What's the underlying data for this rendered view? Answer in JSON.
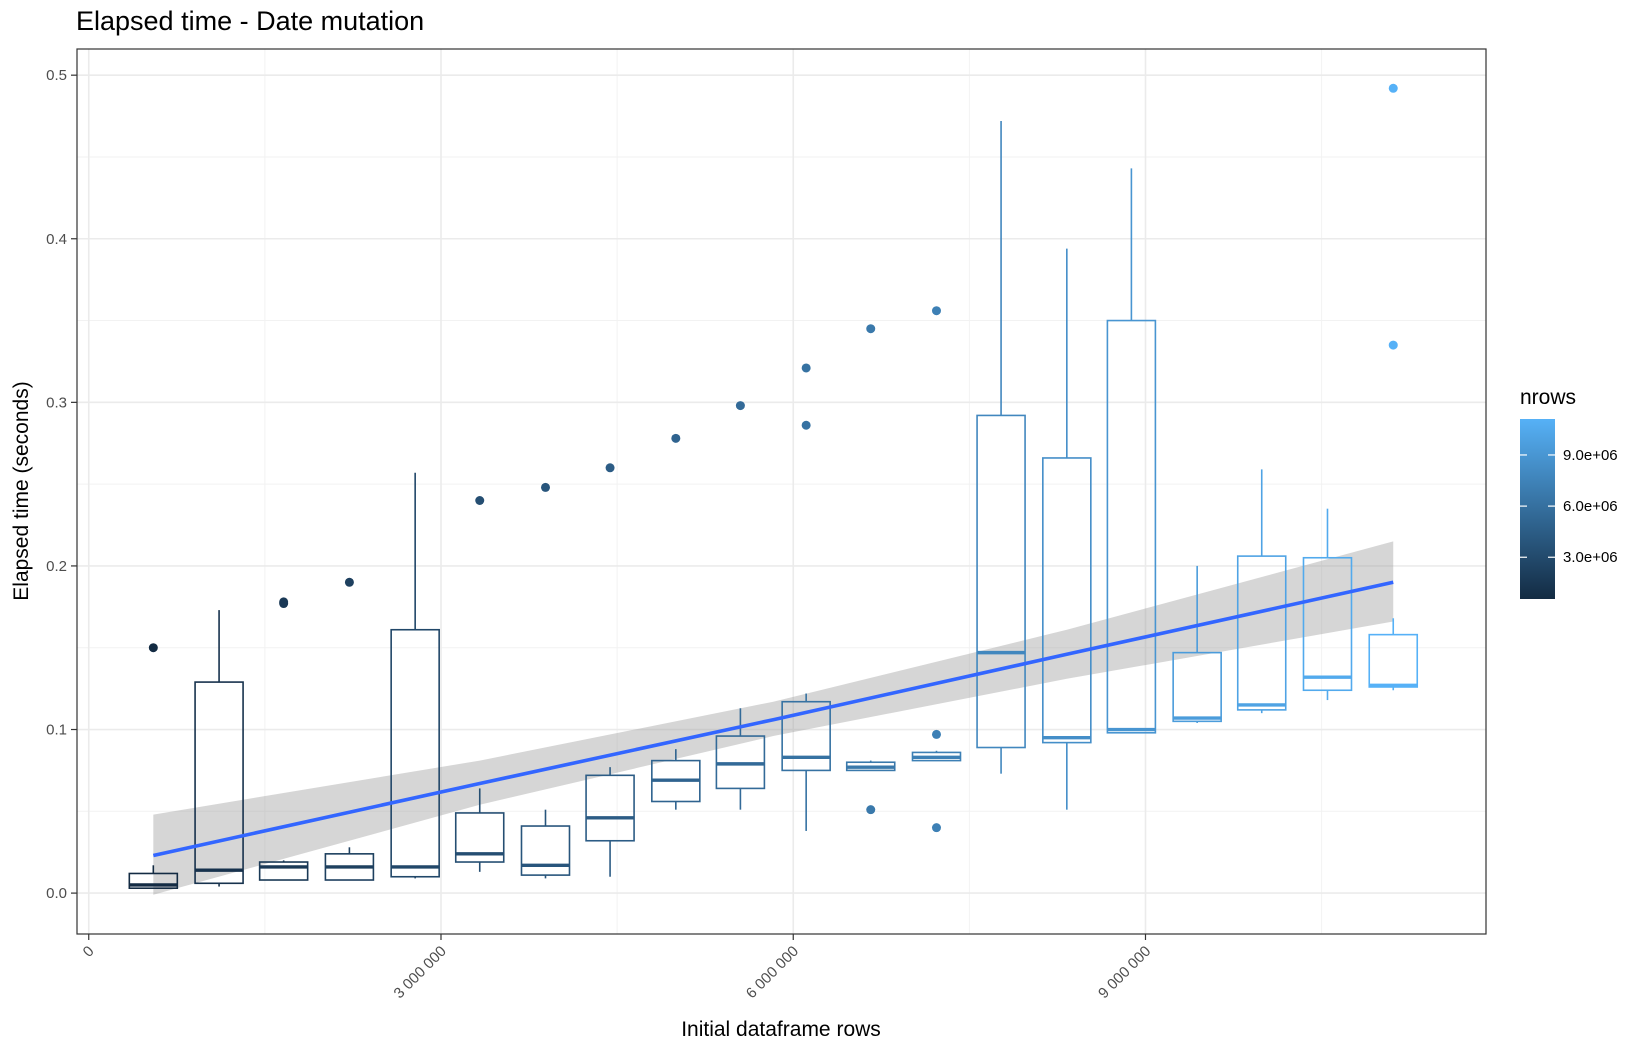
{
  "chart_data": {
    "type": "box",
    "title": "Elapsed time - Date mutation",
    "xlabel": "Initial dataframe rows",
    "ylabel": "Elapsed time (seconds)",
    "xlim": [
      -100000,
      11900000
    ],
    "ylim": [
      -0.025,
      0.516
    ],
    "x_ticks": [
      0,
      3000000,
      6000000,
      9000000
    ],
    "x_tick_labels": [
      "0",
      "3 000 000",
      "6 000 000",
      "9 000 000"
    ],
    "y_ticks": [
      0.0,
      0.1,
      0.2,
      0.3,
      0.4,
      0.5
    ],
    "y_tick_labels": [
      "0.0",
      "0.1",
      "0.2",
      "0.3",
      "0.4",
      "0.5"
    ],
    "grid": true,
    "color_scale": {
      "title": "nrows",
      "low_color": "#132B43",
      "high_color": "#56B1F7",
      "range": [
        550000,
        11110000
      ],
      "ticks": [
        3000000,
        6000000,
        9000000
      ],
      "tick_labels": [
        "3.0e+06",
        "6.0e+06",
        "9.0e+06"
      ],
      "legend_placement": "right"
    },
    "boxes": [
      {
        "x": 550000,
        "min": 0.003,
        "q1": 0.003,
        "median": 0.005,
        "q3": 0.012,
        "max": 0.017,
        "outliers": [
          0.15
        ]
      },
      {
        "x": 1110000,
        "min": 0.004,
        "q1": 0.006,
        "median": 0.014,
        "q3": 0.129,
        "max": 0.173,
        "outliers": []
      },
      {
        "x": 1660000,
        "min": 0.008,
        "q1": 0.008,
        "median": 0.016,
        "q3": 0.019,
        "max": 0.02,
        "outliers": [
          0.177,
          0.178
        ]
      },
      {
        "x": 2220000,
        "min": 0.008,
        "q1": 0.008,
        "median": 0.016,
        "q3": 0.024,
        "max": 0.028,
        "outliers": [
          0.19
        ]
      },
      {
        "x": 2780000,
        "min": 0.009,
        "q1": 0.01,
        "median": 0.016,
        "q3": 0.161,
        "max": 0.257,
        "outliers": []
      },
      {
        "x": 3330000,
        "min": 0.013,
        "q1": 0.019,
        "median": 0.024,
        "q3": 0.049,
        "max": 0.064,
        "outliers": [
          0.24
        ]
      },
      {
        "x": 3890000,
        "min": 0.009,
        "q1": 0.011,
        "median": 0.017,
        "q3": 0.041,
        "max": 0.051,
        "outliers": [
          0.248
        ]
      },
      {
        "x": 4440000,
        "min": 0.01,
        "q1": 0.032,
        "median": 0.046,
        "q3": 0.072,
        "max": 0.077,
        "outliers": [
          0.26
        ]
      },
      {
        "x": 5000000,
        "min": 0.051,
        "q1": 0.056,
        "median": 0.069,
        "q3": 0.081,
        "max": 0.088,
        "outliers": [
          0.278
        ]
      },
      {
        "x": 5550000,
        "min": 0.051,
        "q1": 0.064,
        "median": 0.079,
        "q3": 0.096,
        "max": 0.113,
        "outliers": [
          0.298
        ]
      },
      {
        "x": 6110000,
        "min": 0.038,
        "q1": 0.075,
        "median": 0.083,
        "q3": 0.117,
        "max": 0.122,
        "outliers": [
          0.286,
          0.321
        ]
      },
      {
        "x": 6660000,
        "min": 0.075,
        "q1": 0.075,
        "median": 0.077,
        "q3": 0.08,
        "max": 0.081,
        "outliers": [
          0.051,
          0.345
        ]
      },
      {
        "x": 7220000,
        "min": 0.081,
        "q1": 0.081,
        "median": 0.083,
        "q3": 0.086,
        "max": 0.087,
        "outliers": [
          0.04,
          0.097,
          0.356
        ]
      },
      {
        "x": 7770000,
        "min": 0.073,
        "q1": 0.089,
        "median": 0.147,
        "q3": 0.292,
        "max": 0.472,
        "outliers": []
      },
      {
        "x": 8330000,
        "min": 0.051,
        "q1": 0.092,
        "median": 0.095,
        "q3": 0.266,
        "max": 0.394,
        "outliers": []
      },
      {
        "x": 8880000,
        "min": 0.098,
        "q1": 0.098,
        "median": 0.1,
        "q3": 0.35,
        "max": 0.443,
        "outliers": []
      },
      {
        "x": 9440000,
        "min": 0.104,
        "q1": 0.105,
        "median": 0.107,
        "q3": 0.147,
        "max": 0.2,
        "outliers": []
      },
      {
        "x": 9990000,
        "min": 0.11,
        "q1": 0.112,
        "median": 0.115,
        "q3": 0.206,
        "max": 0.259,
        "outliers": []
      },
      {
        "x": 10550000,
        "min": 0.118,
        "q1": 0.124,
        "median": 0.132,
        "q3": 0.205,
        "max": 0.235,
        "outliers": []
      },
      {
        "x": 11110000,
        "min": 0.124,
        "q1": 0.126,
        "median": 0.127,
        "q3": 0.158,
        "max": 0.168,
        "outliers": [
          0.335,
          0.492
        ]
      }
    ],
    "smooth": {
      "method": "lm",
      "color": "#3366FF",
      "ribbon_color": "#999999",
      "points": [
        {
          "x": 550000,
          "y": 0.023,
          "lo": -0.001,
          "hi": 0.048
        },
        {
          "x": 3330000,
          "y": 0.067,
          "lo": 0.054,
          "hi": 0.081
        },
        {
          "x": 5830000,
          "y": 0.106,
          "lo": 0.096,
          "hi": 0.117
        },
        {
          "x": 8330000,
          "y": 0.146,
          "lo": 0.131,
          "hi": 0.161
        },
        {
          "x": 11110000,
          "y": 0.19,
          "lo": 0.166,
          "hi": 0.215
        }
      ]
    }
  }
}
